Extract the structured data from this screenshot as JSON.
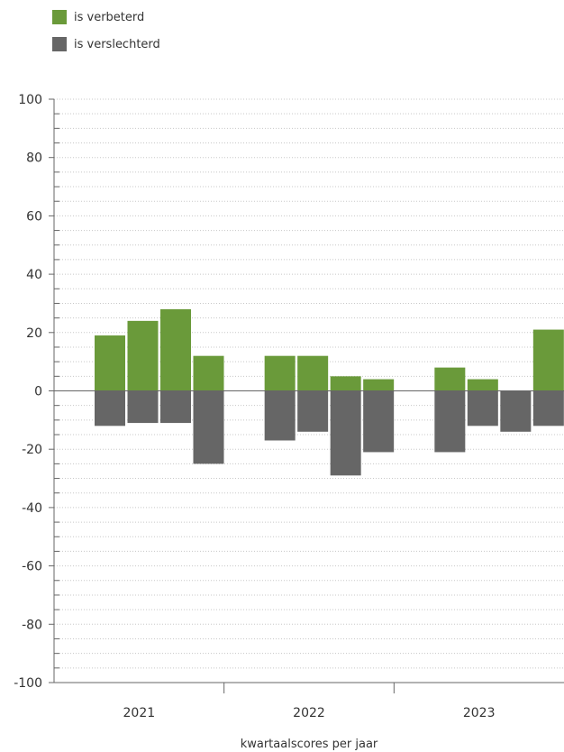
{
  "legend": [
    {
      "label": "is verbeterd",
      "color": "#6a9a3a"
    },
    {
      "label": "is verslechterd",
      "color": "#666666"
    }
  ],
  "chart_data": {
    "type": "bar",
    "xlabel": "kwartaalscores per jaar",
    "ylabel": "",
    "ylim": [
      -100,
      100
    ],
    "yticks": [
      100,
      80,
      60,
      40,
      20,
      0,
      -20,
      -40,
      -60,
      -80,
      -100
    ],
    "grid": true,
    "legend_position": "top-left",
    "groups": [
      "2021",
      "2022",
      "2023"
    ],
    "quarters_per_group": 4,
    "series": [
      {
        "name": "is verbeterd",
        "color": "#6a9a3a",
        "values": [
          19,
          24,
          28,
          12,
          12,
          12,
          5,
          4,
          8,
          4,
          0,
          21
        ]
      },
      {
        "name": "is verslechterd",
        "color": "#666666",
        "values": [
          -12,
          -11,
          -11,
          -25,
          -17,
          -14,
          -29,
          -21,
          -21,
          -12,
          -14,
          -12
        ]
      }
    ]
  }
}
